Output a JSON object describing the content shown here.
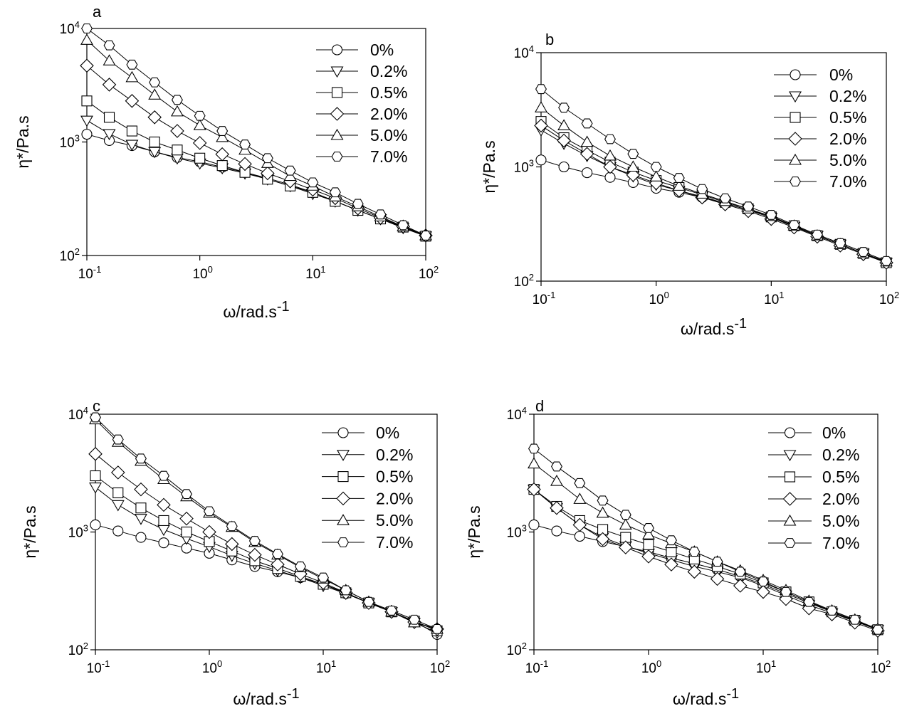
{
  "chart_data": [
    {
      "type": "line",
      "panel_label": "a",
      "xlabel": "ω/rad.s",
      "xlabel_sup": "-1",
      "ylabel": "η*/Pa.s",
      "xscale": "log",
      "yscale": "log",
      "xlim": [
        0.1,
        100
      ],
      "ylim": [
        100,
        10000
      ],
      "x_ticks": [
        {
          "base": "10",
          "exp": "-1"
        },
        {
          "base": "10",
          "exp": "0"
        },
        {
          "base": "10",
          "exp": "1"
        },
        {
          "base": "10",
          "exp": "2"
        }
      ],
      "y_ticks": [
        {
          "base": "10",
          "exp": "2"
        },
        {
          "base": "10",
          "exp": "3"
        },
        {
          "base": "10",
          "exp": "4"
        }
      ],
      "grid": false,
      "legend": "top-right",
      "x": [
        0.1,
        0.158,
        0.251,
        0.398,
        0.631,
        1,
        1.58,
        2.51,
        3.98,
        6.31,
        10,
        15.8,
        25.1,
        39.8,
        63.1,
        100
      ],
      "series": [
        {
          "name": "0%",
          "marker": "circle",
          "values": [
            1170,
            1030,
            930,
            820,
            730,
            670,
            600,
            540,
            480,
            420,
            360,
            300,
            250,
            210,
            180,
            150
          ]
        },
        {
          "name": "0.2%",
          "marker": "triangle-down",
          "values": [
            1550,
            1180,
            950,
            820,
            720,
            650,
            590,
            530,
            470,
            410,
            350,
            300,
            250,
            210,
            175,
            148
          ]
        },
        {
          "name": "0.5%",
          "marker": "square",
          "values": [
            2300,
            1650,
            1250,
            1000,
            850,
            720,
            620,
            540,
            470,
            410,
            360,
            300,
            250,
            210,
            178,
            148
          ]
        },
        {
          "name": "2.0%",
          "marker": "diamond",
          "values": [
            4700,
            3200,
            2300,
            1650,
            1250,
            980,
            780,
            640,
            530,
            450,
            380,
            320,
            260,
            215,
            180,
            150
          ]
        },
        {
          "name": "5.0%",
          "marker": "triangle-up",
          "values": [
            7900,
            5200,
            3700,
            2600,
            1850,
            1400,
            1100,
            850,
            650,
            500,
            410,
            330,
            270,
            220,
            180,
            150
          ]
        },
        {
          "name": "7.0%",
          "marker": "hexagon",
          "values": [
            10000,
            7100,
            4800,
            3350,
            2350,
            1700,
            1250,
            950,
            720,
            560,
            440,
            360,
            285,
            230,
            185,
            150
          ]
        }
      ]
    },
    {
      "type": "line",
      "panel_label": "b",
      "xlabel": "ω/rad.s",
      "xlabel_sup": "-1",
      "ylabel": "η*/Pa.s",
      "xscale": "log",
      "yscale": "log",
      "xlim": [
        0.1,
        100
      ],
      "ylim": [
        100,
        10000
      ],
      "x_ticks": [
        {
          "base": "10",
          "exp": "-1"
        },
        {
          "base": "10",
          "exp": "0"
        },
        {
          "base": "10",
          "exp": "1"
        },
        {
          "base": "10",
          "exp": "2"
        }
      ],
      "y_ticks": [
        {
          "base": "10",
          "exp": "2"
        },
        {
          "base": "10",
          "exp": "3"
        },
        {
          "base": "10",
          "exp": "4"
        }
      ],
      "grid": false,
      "legend": "top-right",
      "x": [
        0.1,
        0.158,
        0.251,
        0.398,
        0.631,
        1,
        1.58,
        2.51,
        3.98,
        6.31,
        10,
        15.8,
        25.1,
        39.8,
        63.1,
        100
      ],
      "series": [
        {
          "name": "0%",
          "marker": "circle",
          "values": [
            1150,
            1000,
            890,
            810,
            730,
            650,
            600,
            540,
            480,
            420,
            370,
            300,
            250,
            210,
            175,
            148
          ]
        },
        {
          "name": "0.2%",
          "marker": "triangle-down",
          "values": [
            2100,
            1600,
            1250,
            1000,
            830,
            700,
            620,
            550,
            480,
            420,
            360,
            300,
            250,
            210,
            175,
            145
          ]
        },
        {
          "name": "0.5%",
          "marker": "square",
          "values": [
            2500,
            1800,
            1400,
            1100,
            900,
            760,
            660,
            570,
            490,
            430,
            365,
            305,
            250,
            210,
            175,
            145
          ]
        },
        {
          "name": "2.0%",
          "marker": "diamond",
          "values": [
            2300,
            1700,
            1300,
            1000,
            850,
            720,
            620,
            540,
            470,
            410,
            350,
            295,
            245,
            205,
            172,
            145
          ]
        },
        {
          "name": "5.0%",
          "marker": "triangle-up",
          "values": [
            3300,
            2300,
            1650,
            1250,
            1000,
            820,
            680,
            580,
            500,
            430,
            370,
            305,
            250,
            210,
            175,
            148
          ]
        },
        {
          "name": "7.0%",
          "marker": "hexagon",
          "values": [
            4800,
            3300,
            2400,
            1750,
            1300,
            1000,
            800,
            640,
            530,
            450,
            380,
            310,
            255,
            215,
            180,
            150
          ]
        }
      ]
    },
    {
      "type": "line",
      "panel_label": "c",
      "xlabel": "ω/rad.s",
      "xlabel_sup": "-1",
      "ylabel": "η*/Pa.s",
      "xscale": "log",
      "yscale": "log",
      "xlim": [
        0.1,
        100
      ],
      "ylim": [
        100,
        10000
      ],
      "x_ticks": [
        {
          "base": "10",
          "exp": "-1"
        },
        {
          "base": "10",
          "exp": "0"
        },
        {
          "base": "10",
          "exp": "1"
        },
        {
          "base": "10",
          "exp": "2"
        }
      ],
      "y_ticks": [
        {
          "base": "10",
          "exp": "2"
        },
        {
          "base": "10",
          "exp": "3"
        },
        {
          "base": "10",
          "exp": "4"
        }
      ],
      "grid": false,
      "legend": "top-right",
      "x": [
        0.1,
        0.158,
        0.251,
        0.398,
        0.631,
        1,
        1.58,
        2.51,
        3.98,
        6.31,
        10,
        15.8,
        25.1,
        39.8,
        63.1,
        100
      ],
      "series": [
        {
          "name": "0%",
          "marker": "circle",
          "values": [
            1150,
            1020,
            900,
            810,
            730,
            660,
            580,
            510,
            460,
            410,
            360,
            300,
            250,
            210,
            175,
            135
          ]
        },
        {
          "name": "0.2%",
          "marker": "triangle-down",
          "values": [
            2400,
            1700,
            1300,
            1050,
            880,
            750,
            630,
            540,
            470,
            410,
            350,
            300,
            250,
            210,
            170,
            140
          ]
        },
        {
          "name": "0.5%",
          "marker": "square",
          "values": [
            3000,
            2150,
            1600,
            1250,
            1000,
            830,
            690,
            570,
            490,
            420,
            360,
            305,
            250,
            210,
            175,
            145
          ]
        },
        {
          "name": "2.0%",
          "marker": "diamond",
          "values": [
            4600,
            3200,
            2300,
            1700,
            1300,
            1000,
            790,
            640,
            530,
            440,
            370,
            305,
            250,
            210,
            172,
            150
          ]
        },
        {
          "name": "5.0%",
          "marker": "triangle-up",
          "values": [
            9000,
            5800,
            4000,
            2800,
            2000,
            1450,
            1100,
            820,
            640,
            500,
            400,
            320,
            255,
            210,
            170,
            150
          ]
        },
        {
          "name": "7.0%",
          "marker": "hexagon",
          "values": [
            9400,
            6100,
            4200,
            3000,
            2100,
            1500,
            1120,
            840,
            650,
            510,
            410,
            320,
            255,
            215,
            180,
            150
          ]
        }
      ]
    },
    {
      "type": "line",
      "panel_label": "d",
      "xlabel": "ω/rad.s",
      "xlabel_sup": "-1",
      "ylabel": "η*/Pa.s",
      "xscale": "log",
      "yscale": "log",
      "xlim": [
        0.1,
        100
      ],
      "ylim": [
        100,
        10000
      ],
      "x_ticks": [
        {
          "base": "10",
          "exp": "-1"
        },
        {
          "base": "10",
          "exp": "0"
        },
        {
          "base": "10",
          "exp": "1"
        },
        {
          "base": "10",
          "exp": "2"
        }
      ],
      "y_ticks": [
        {
          "base": "10",
          "exp": "2"
        },
        {
          "base": "10",
          "exp": "3"
        },
        {
          "base": "10",
          "exp": "4"
        }
      ],
      "grid": false,
      "legend": "top-right",
      "x": [
        0.1,
        0.158,
        0.251,
        0.398,
        0.631,
        1,
        1.58,
        2.51,
        3.98,
        6.31,
        10,
        15.8,
        25.1,
        39.8,
        63.1,
        100
      ],
      "series": [
        {
          "name": "0%",
          "marker": "circle",
          "values": [
            1150,
            1020,
            920,
            830,
            750,
            680,
            600,
            540,
            480,
            420,
            360,
            300,
            250,
            210,
            175,
            148
          ]
        },
        {
          "name": "0.2%",
          "marker": "triangle-down",
          "values": [
            2300,
            1600,
            1150,
            900,
            760,
            660,
            580,
            510,
            460,
            410,
            350,
            290,
            240,
            205,
            175,
            148
          ]
        },
        {
          "name": "0.5%",
          "marker": "square",
          "values": [
            2300,
            1650,
            1250,
            1050,
            900,
            780,
            680,
            590,
            510,
            440,
            370,
            310,
            255,
            210,
            178,
            148
          ]
        },
        {
          "name": "2.0%",
          "marker": "diamond",
          "values": [
            2300,
            1600,
            1150,
            870,
            740,
            620,
            530,
            460,
            400,
            350,
            310,
            270,
            225,
            200,
            170,
            145
          ]
        },
        {
          "name": "5.0%",
          "marker": "triangle-up",
          "values": [
            3800,
            2700,
            1900,
            1450,
            1150,
            950,
            800,
            680,
            560,
            470,
            390,
            320,
            260,
            215,
            180,
            150
          ]
        },
        {
          "name": "7.0%",
          "marker": "hexagon",
          "values": [
            5100,
            3600,
            2600,
            1850,
            1400,
            1080,
            850,
            680,
            560,
            460,
            380,
            310,
            255,
            215,
            180,
            148
          ]
        }
      ]
    }
  ]
}
